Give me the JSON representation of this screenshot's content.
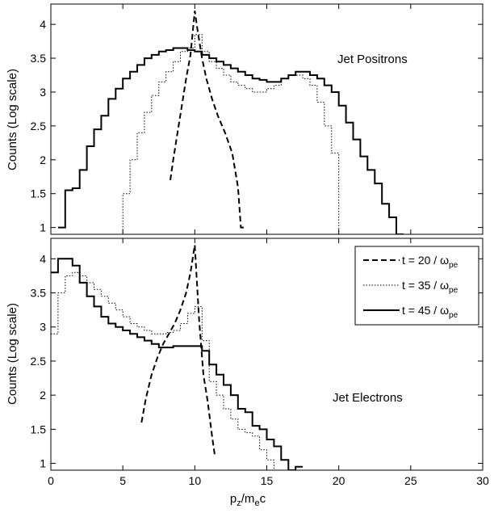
{
  "chart_data": [
    {
      "type": "line",
      "annotation": "Jet Positrons",
      "ylabel": "Counts (Log scale)",
      "xlim": [
        0,
        30
      ],
      "ylim": [
        0.9,
        4.3
      ],
      "yticks": [
        1,
        1.5,
        2,
        2.5,
        3,
        3.5,
        4
      ],
      "yticklabels": [
        "1",
        "1.5",
        "2",
        "2.5",
        "3",
        "3.5",
        "4"
      ],
      "grid": false,
      "series": [
        {
          "name": "t = 20 / ωpe",
          "style": "dashed",
          "color": "#000000",
          "x": [
            8.3,
            8.5,
            8.8,
            9.1,
            9.4,
            9.7,
            10.0,
            10.2,
            10.5,
            10.8,
            11.2,
            11.6,
            12.1,
            12.6,
            13.0,
            13.2,
            13.4
          ],
          "y": [
            1.7,
            2.0,
            2.4,
            2.8,
            3.2,
            3.55,
            4.2,
            3.9,
            3.5,
            3.2,
            2.9,
            2.65,
            2.4,
            2.1,
            1.6,
            1.0,
            1.0
          ]
        },
        {
          "name": "t = 35 / ωpe",
          "style": "dotted",
          "color": "#000000",
          "x": [
            4.7,
            5.0,
            5.5,
            6.0,
            6.5,
            7.0,
            7.5,
            8.0,
            8.5,
            9.0,
            9.5,
            10.0,
            10.5,
            11.0,
            11.5,
            12.0,
            12.5,
            13.0,
            13.5,
            14.0,
            14.5,
            15.0,
            15.5,
            16.0,
            16.5,
            17.0,
            17.5,
            18.0,
            18.5,
            19.0,
            19.5,
            20.0
          ],
          "y": [
            0.9,
            1.5,
            2.0,
            2.4,
            2.7,
            2.95,
            3.15,
            3.3,
            3.45,
            3.6,
            3.65,
            3.85,
            3.6,
            3.45,
            3.35,
            3.25,
            3.15,
            3.1,
            3.05,
            3.0,
            3.0,
            3.05,
            3.1,
            3.2,
            3.25,
            3.25,
            3.2,
            3.1,
            2.85,
            2.5,
            2.1,
            0.9
          ]
        },
        {
          "name": "t = 45 / ωpe",
          "style": "solid",
          "color": "#000000",
          "x": [
            0.5,
            1.0,
            1.5,
            2.0,
            2.5,
            3.0,
            3.5,
            4.0,
            4.5,
            5.0,
            5.5,
            6.0,
            6.5,
            7.0,
            7.5,
            8.0,
            8.5,
            9.0,
            9.5,
            10.0,
            10.5,
            11.0,
            11.5,
            12.0,
            12.5,
            13.0,
            13.5,
            14.0,
            14.5,
            15.0,
            15.5,
            16.0,
            16.5,
            17.0,
            17.5,
            18.0,
            18.5,
            19.0,
            19.5,
            20.0,
            20.5,
            21.0,
            21.5,
            22.0,
            22.5,
            23.0,
            23.5,
            24.0
          ],
          "y": [
            1.0,
            1.55,
            1.58,
            1.85,
            2.2,
            2.45,
            2.65,
            2.9,
            3.05,
            3.2,
            3.3,
            3.4,
            3.5,
            3.55,
            3.6,
            3.62,
            3.65,
            3.65,
            3.62,
            3.6,
            3.55,
            3.5,
            3.45,
            3.4,
            3.35,
            3.3,
            3.25,
            3.2,
            3.18,
            3.15,
            3.15,
            3.2,
            3.25,
            3.3,
            3.3,
            3.25,
            3.2,
            3.1,
            3.0,
            2.8,
            2.55,
            2.3,
            2.05,
            1.85,
            1.65,
            1.35,
            1.15,
            0.9
          ]
        }
      ]
    },
    {
      "type": "line",
      "annotation": "Jet Electrons",
      "ylabel": "Counts (Log scale)",
      "xlabel": "pz/mec",
      "xlim": [
        0,
        30
      ],
      "ylim": [
        0.9,
        4.3
      ],
      "xticks": [
        0,
        5,
        10,
        15,
        20,
        25,
        30
      ],
      "xticklabels": [
        "0",
        "5",
        "10",
        "15",
        "20",
        "25",
        "30"
      ],
      "yticks": [
        1,
        1.5,
        2,
        2.5,
        3,
        3.5,
        4
      ],
      "yticklabels": [
        "1",
        "1.5",
        "2",
        "2.5",
        "3",
        "3.5",
        "4"
      ],
      "grid": false,
      "legend_position": "top-right",
      "series": [
        {
          "name": "t = 20 / ωpe",
          "style": "dashed",
          "color": "#000000",
          "x": [
            6.3,
            6.6,
            7.0,
            7.4,
            7.8,
            8.2,
            8.6,
            9.0,
            9.4,
            9.7,
            10.0,
            10.3,
            10.6,
            10.9,
            11.2,
            11.4
          ],
          "y": [
            1.6,
            1.95,
            2.3,
            2.55,
            2.75,
            2.9,
            3.05,
            3.25,
            3.5,
            3.8,
            4.2,
            3.1,
            2.3,
            1.9,
            1.4,
            1.1
          ]
        },
        {
          "name": "t = 35 / ωpe",
          "style": "dotted",
          "color": "#000000",
          "x": [
            0,
            0.5,
            1.0,
            1.5,
            2.0,
            2.5,
            3.0,
            3.5,
            4.0,
            4.5,
            5.0,
            5.5,
            6.0,
            6.5,
            7.0,
            7.5,
            8.0,
            8.5,
            9.0,
            9.5,
            10.0,
            10.5,
            11.0,
            11.5,
            12.0,
            12.5,
            13.0,
            13.5,
            14.0,
            14.5,
            15.0,
            15.5
          ],
          "y": [
            2.9,
            3.5,
            3.75,
            3.8,
            3.75,
            3.65,
            3.55,
            3.45,
            3.35,
            3.25,
            3.15,
            3.05,
            3.0,
            2.95,
            2.9,
            2.9,
            2.92,
            2.95,
            3.05,
            3.2,
            3.3,
            2.8,
            2.2,
            2.0,
            1.8,
            1.65,
            1.5,
            1.45,
            1.4,
            1.2,
            1.05,
            0.9
          ]
        },
        {
          "name": "t = 45 / ωpe",
          "style": "solid",
          "color": "#000000",
          "x": [
            0,
            0.5,
            1.0,
            1.5,
            2.0,
            2.5,
            3.0,
            3.5,
            4.0,
            4.5,
            5.0,
            5.5,
            6.0,
            6.5,
            7.0,
            7.5,
            8.0,
            8.5,
            9.0,
            9.5,
            10.0,
            10.5,
            11.0,
            11.5,
            12.0,
            12.5,
            13.0,
            13.5,
            14.0,
            14.5,
            15.0,
            15.5,
            16.0,
            16.5,
            17.0
          ],
          "y": [
            3.8,
            4.0,
            4.0,
            3.9,
            3.65,
            3.45,
            3.3,
            3.15,
            3.05,
            3.0,
            2.95,
            2.9,
            2.85,
            2.8,
            2.75,
            2.7,
            2.7,
            2.72,
            2.72,
            2.72,
            2.72,
            2.65,
            2.45,
            2.3,
            2.15,
            2.0,
            1.8,
            1.75,
            1.55,
            1.5,
            1.35,
            1.25,
            1.05,
            0.9,
            0.95
          ]
        }
      ]
    }
  ],
  "legend": {
    "entries": [
      {
        "label": "t = 20 / ω",
        "sub": "pe",
        "style": "dashed"
      },
      {
        "label": "t = 35 / ω",
        "sub": "pe",
        "style": "dotted"
      },
      {
        "label": "t = 45 / ω",
        "sub": "pe",
        "style": "solid"
      }
    ]
  },
  "xlabel_parts": {
    "p": "p",
    "z": "z",
    "slash_m": "/m",
    "e": "e",
    "c": "c"
  }
}
